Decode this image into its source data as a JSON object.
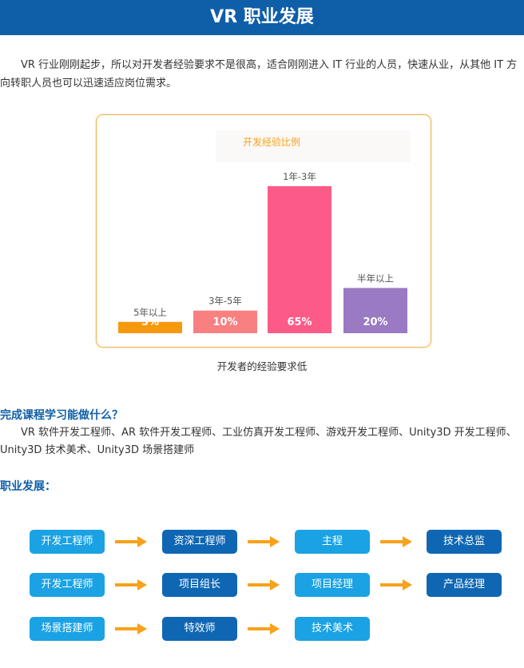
{
  "header": {
    "title": "VR 职业发展"
  },
  "intro": {
    "text": "VR 行业刚刚起步，所以对开发者经验要求不是很高，适合刚刚进入 IT 行业的人员，快速从业，从其他 IT 方向转职人员也可以迅速适应岗位需求。"
  },
  "chart_data": {
    "type": "bar",
    "title": "开发经验比例",
    "categories": [
      "5年以上",
      "3年-5年",
      "1年-3年",
      "半年以上"
    ],
    "values": [
      5,
      10,
      65,
      20
    ],
    "value_labels": [
      "5%",
      "10%",
      "65%",
      "20%"
    ],
    "colors": [
      "#f7990d",
      "#f98080",
      "#fd5b87",
      "#9a7ac2"
    ],
    "ylim": [
      0,
      65
    ],
    "grid": false,
    "caption": "开发者的经验要求低"
  },
  "section1": {
    "title": "完成课程学习能做什么？",
    "text": "VR 软件开发工程师、AR 软件开发工程师、工业仿真开发工程师、游戏开发工程师、Unity3D 开发工程师、Unity3D 技术美术、Unity3D 场景搭建师"
  },
  "section2": {
    "title": "职业发展：",
    "rows": [
      {
        "nodes": [
          "开发工程师",
          "资深工程师",
          "主程",
          "技术总监"
        ]
      },
      {
        "nodes": [
          "开发工程师",
          "项目组长",
          "项目经理",
          "产品经理"
        ]
      },
      {
        "nodes": [
          "场景搭建师",
          "特效师",
          "技术美术"
        ]
      }
    ],
    "colors": {
      "light": "#1aa2e4",
      "dark": "#0f67b4",
      "arrow": "#f8a11a"
    }
  }
}
